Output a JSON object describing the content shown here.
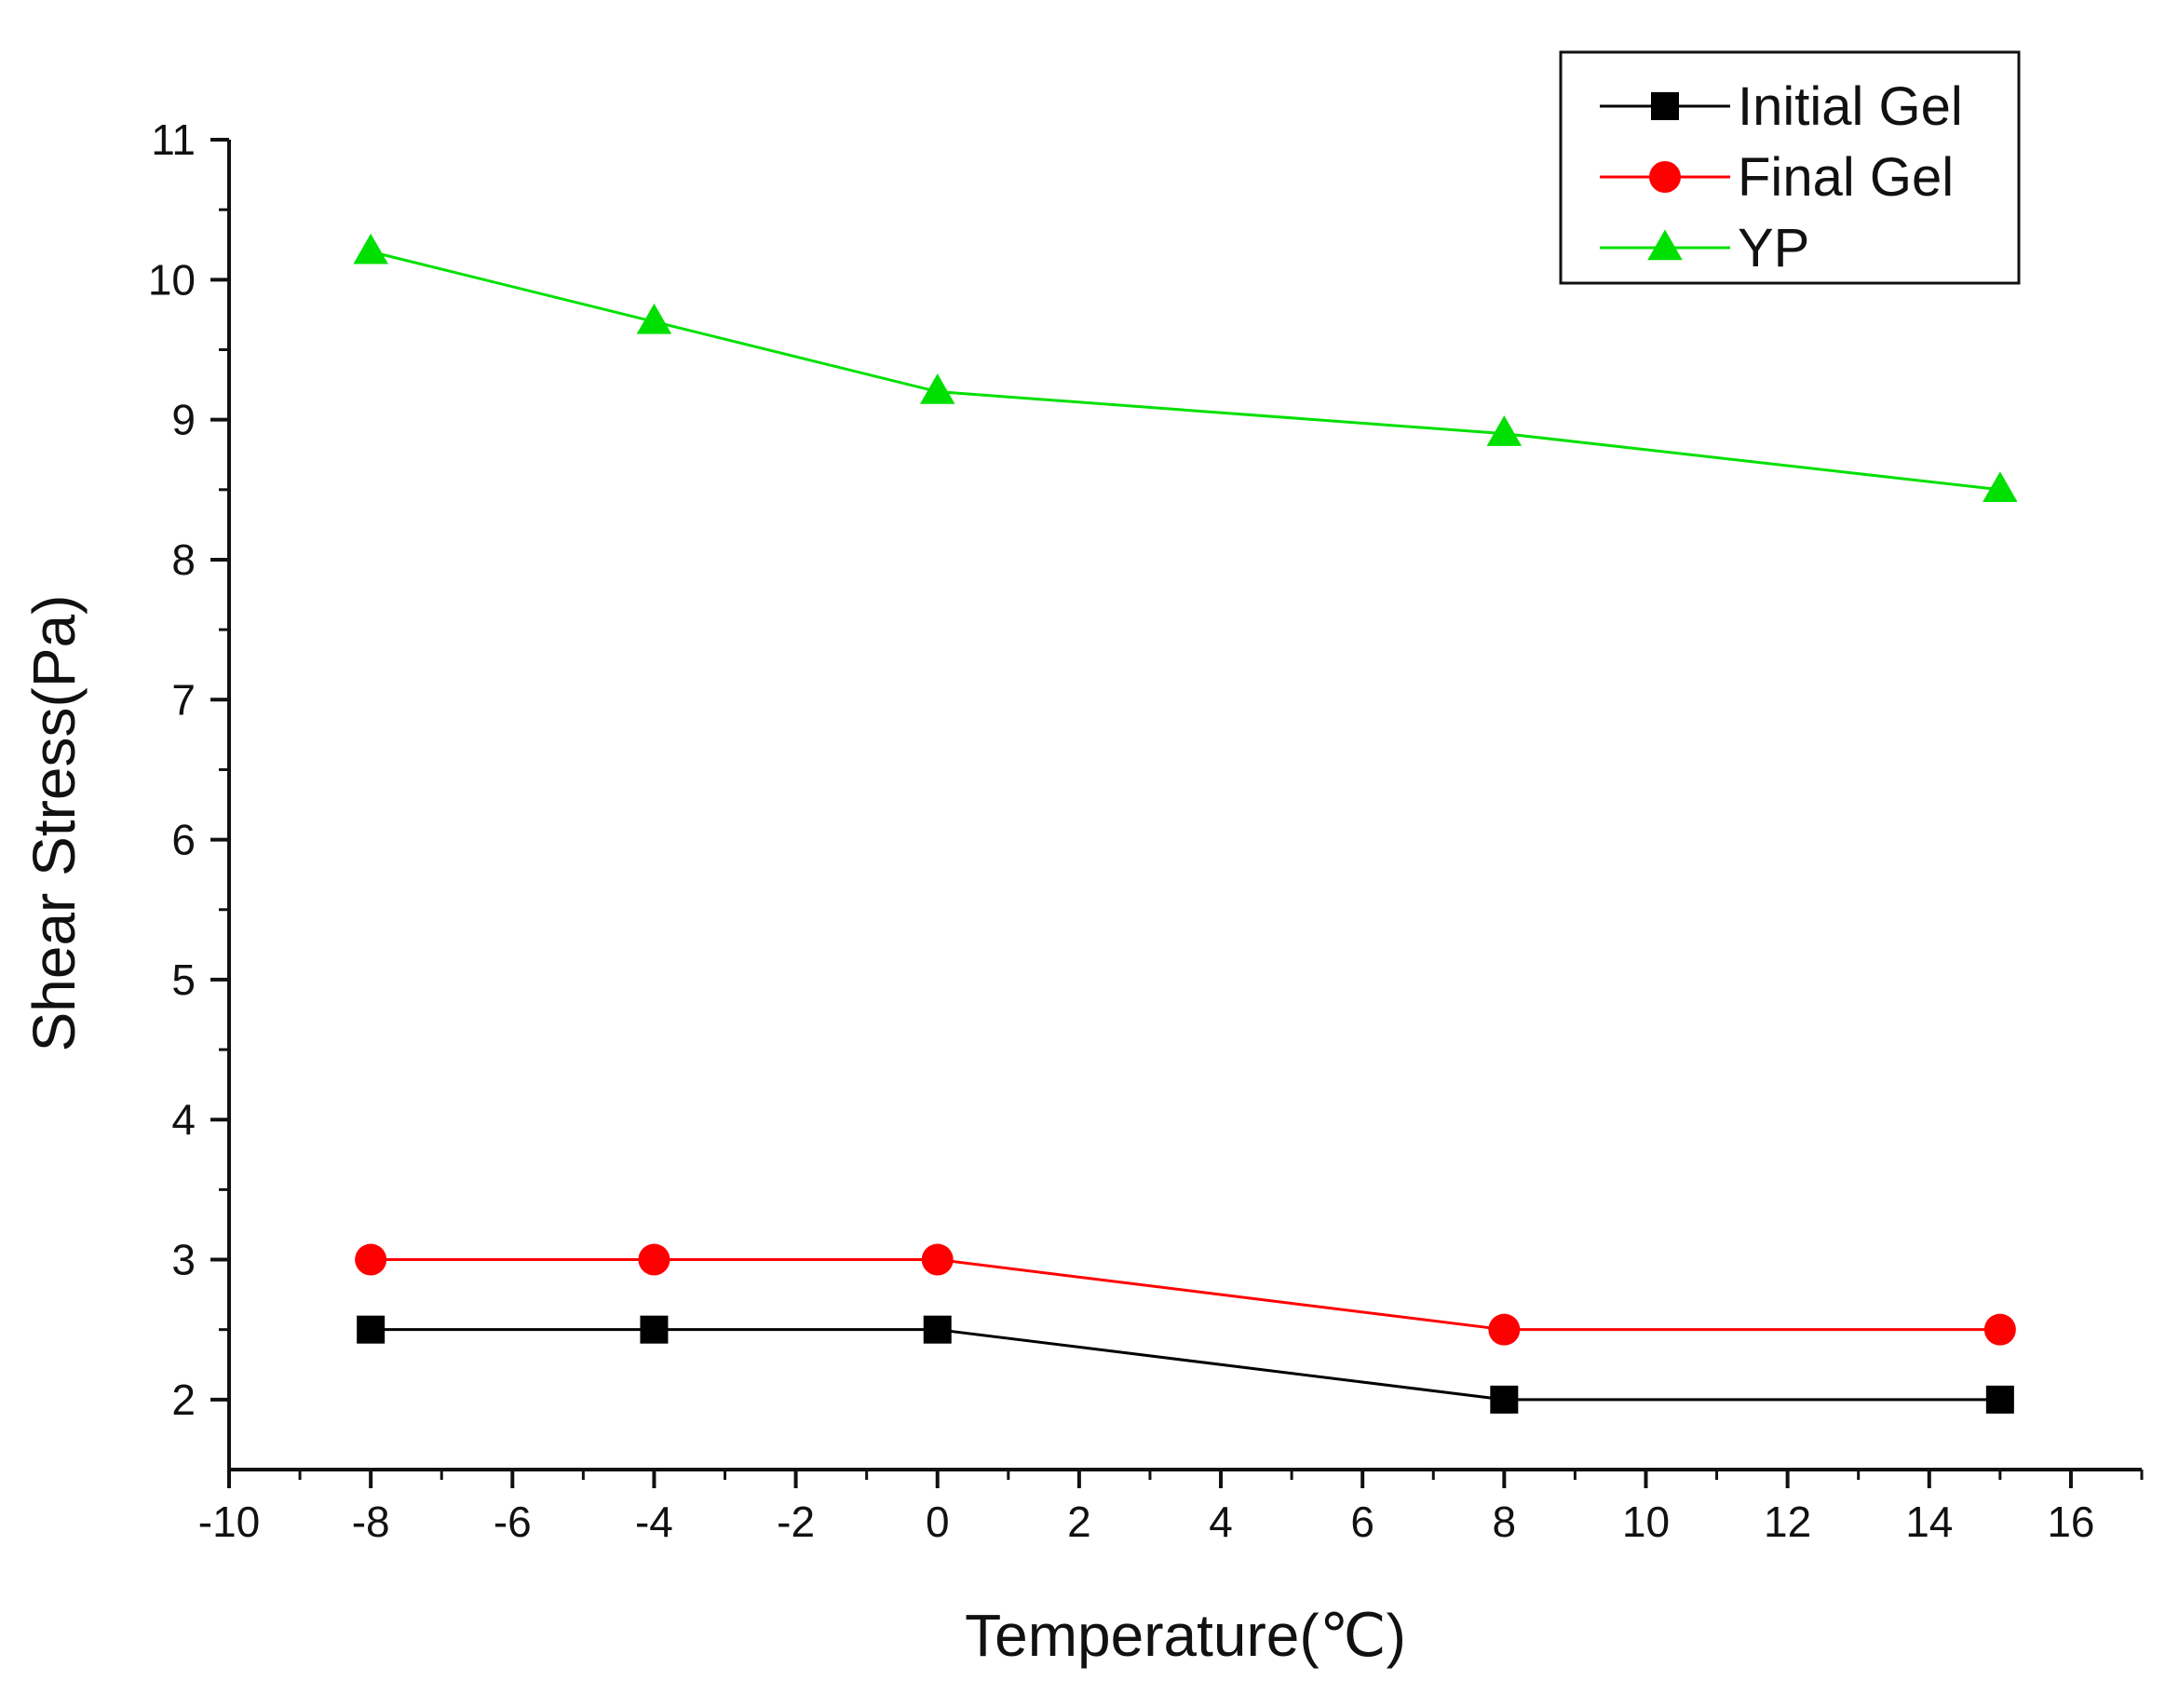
{
  "chart_data": {
    "type": "line",
    "title": "",
    "xlabel": "Temperature(℃)",
    "ylabel": "Shear Stress(Pa)",
    "xlim": [
      -10,
      17
    ],
    "ylim": [
      1.5,
      11
    ],
    "x": [
      -8,
      -4,
      0,
      8,
      15
    ],
    "x_ticks": [
      -10,
      -8,
      -6,
      -4,
      -2,
      0,
      2,
      4,
      6,
      8,
      10,
      12,
      14,
      16
    ],
    "y_ticks": [
      2,
      3,
      4,
      5,
      6,
      7,
      8,
      9,
      10,
      11
    ],
    "x_tick_labels": [
      "-10",
      "-8",
      "-6",
      "-4",
      "-2",
      "0",
      "2",
      "4",
      "6",
      "8",
      "10",
      "12",
      "14",
      "16"
    ],
    "y_tick_labels": [
      "2",
      "3",
      "4",
      "5",
      "6",
      "7",
      "8",
      "9",
      "10",
      "11"
    ],
    "grid": false,
    "legend_position": "top-right",
    "series": [
      {
        "name": "Initial Gel",
        "marker": "square",
        "color": "#000000",
        "values": [
          2.5,
          2.5,
          2.5,
          2.0,
          2.0
        ]
      },
      {
        "name": "Final Gel",
        "marker": "circle",
        "color": "#ff0000",
        "values": [
          3.0,
          3.0,
          3.0,
          2.5,
          2.5
        ]
      },
      {
        "name": "YP",
        "marker": "triangle",
        "color": "#00e000",
        "values": [
          10.2,
          9.7,
          9.2,
          8.9,
          8.5
        ]
      }
    ]
  }
}
